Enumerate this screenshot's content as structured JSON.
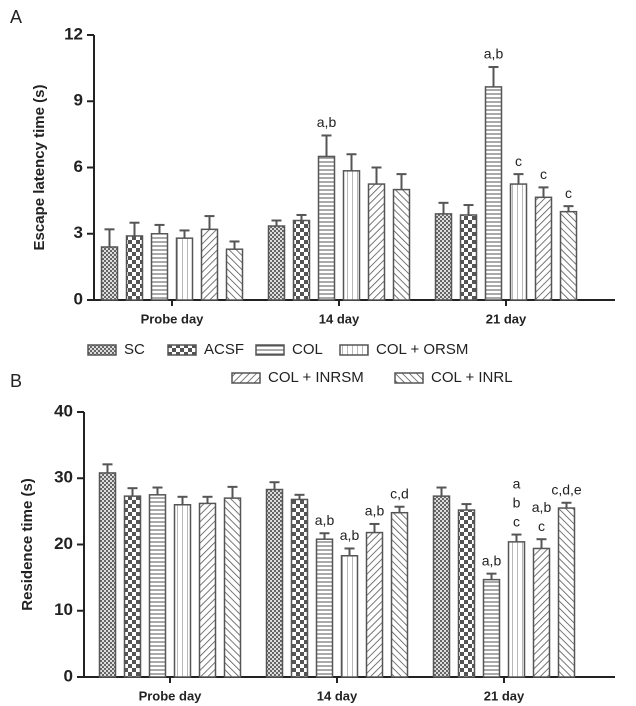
{
  "chart_data": [
    {
      "type": "bar",
      "panel": "A",
      "y_label": "Escape latency time (s)",
      "categories": [
        "Probe day",
        "14 day",
        "21 day"
      ],
      "ylim": [
        0,
        12
      ],
      "yticks": [
        0,
        3,
        6,
        9,
        12
      ],
      "series": [
        {
          "pattern": "dots",
          "color": "#555555",
          "values": [
            2.4,
            3.35,
            3.9
          ],
          "errors": [
            0.8,
            0.25,
            0.5
          ],
          "annotations": [
            null,
            null,
            null
          ]
        },
        {
          "pattern": "checker",
          "color": "#555555",
          "values": [
            2.9,
            3.6,
            3.85
          ],
          "errors": [
            0.6,
            0.25,
            0.45
          ],
          "annotations": [
            null,
            null,
            null
          ]
        },
        {
          "pattern": "hlines",
          "color": "#555555",
          "values": [
            3.0,
            6.5,
            9.65
          ],
          "errors": [
            0.4,
            0.95,
            0.9
          ],
          "annotations": [
            null,
            [
              "a,b"
            ],
            [
              "a,b"
            ]
          ]
        },
        {
          "pattern": "vlines",
          "color": "#555555",
          "values": [
            2.8,
            5.85,
            5.25
          ],
          "errors": [
            0.35,
            0.75,
            0.45
          ],
          "annotations": [
            null,
            null,
            [
              "c"
            ]
          ]
        },
        {
          "pattern": "diag1",
          "color": "#555555",
          "values": [
            3.2,
            5.25,
            4.65
          ],
          "errors": [
            0.6,
            0.75,
            0.45
          ],
          "annotations": [
            null,
            null,
            [
              "c"
            ]
          ]
        },
        {
          "pattern": "diag2",
          "color": "#555555",
          "values": [
            2.3,
            5.0,
            4.0
          ],
          "errors": [
            0.35,
            0.7,
            0.25
          ],
          "annotations": [
            null,
            null,
            [
              "c"
            ]
          ]
        }
      ]
    },
    {
      "type": "bar",
      "panel": "B",
      "y_label": "Residence time (s)",
      "categories": [
        "Probe day",
        "14 day",
        "21 day"
      ],
      "ylim": [
        0,
        40
      ],
      "yticks": [
        0,
        10,
        20,
        30,
        40
      ],
      "series": [
        {
          "name": "SC",
          "pattern": "dots",
          "color": "#555555",
          "values": [
            30.8,
            28.3,
            27.3
          ],
          "errors": [
            1.3,
            1.1,
            1.3
          ],
          "annotations": [
            null,
            null,
            null
          ]
        },
        {
          "name": "ACSF",
          "pattern": "checker",
          "color": "#555555",
          "values": [
            27.3,
            26.8,
            25.2
          ],
          "errors": [
            1.2,
            0.7,
            0.9
          ],
          "annotations": [
            null,
            null,
            null
          ]
        },
        {
          "name": "COL",
          "pattern": "hlines",
          "color": "#555555",
          "values": [
            27.5,
            20.8,
            14.7
          ],
          "errors": [
            1.1,
            0.9,
            0.9
          ],
          "annotations": [
            null,
            [
              "a,b"
            ],
            [
              "a,b"
            ]
          ]
        },
        {
          "name": "COL + ORSM",
          "pattern": "vlines",
          "color": "#555555",
          "values": [
            26.0,
            18.3,
            20.4
          ],
          "errors": [
            1.2,
            1.1,
            1.1
          ],
          "annotations": [
            null,
            [
              "a,b"
            ],
            [
              "a",
              "b",
              "c"
            ]
          ]
        },
        {
          "name": "COL + INRSM",
          "pattern": "diag1",
          "color": "#555555",
          "values": [
            26.2,
            21.8,
            19.4
          ],
          "errors": [
            1.0,
            1.3,
            1.4
          ],
          "annotations": [
            null,
            [
              "a,b"
            ],
            [
              "a,b",
              "c"
            ]
          ]
        },
        {
          "name": "COL + INRL",
          "pattern": "diag2",
          "color": "#555555",
          "values": [
            27.0,
            24.8,
            25.5
          ],
          "errors": [
            1.7,
            0.9,
            0.8
          ],
          "annotations": [
            null,
            [
              "c,d"
            ],
            [
              "c,d,e"
            ]
          ]
        }
      ]
    }
  ]
}
